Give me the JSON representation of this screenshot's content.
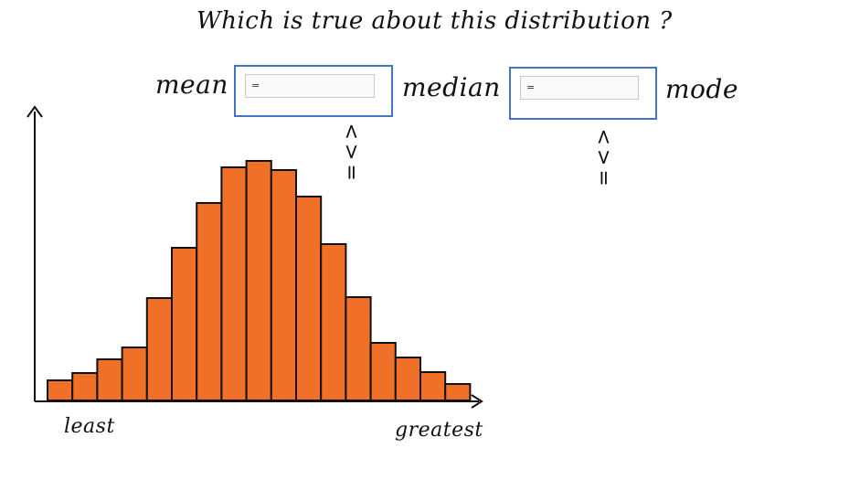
{
  "question": "Which is true about this distribution ?",
  "comparison": {
    "labels": {
      "mean": "mean",
      "median": "median",
      "mode": "mode"
    },
    "dropdowns": [
      {
        "id": "mean-median",
        "selected": "="
      },
      {
        "id": "median-mode",
        "selected": "="
      }
    ],
    "option_hint": "<>="
  },
  "chart_data": {
    "type": "bar",
    "xlabel_left": "least",
    "xlabel_right": "greatest",
    "values": [
      22,
      30,
      45,
      58,
      112,
      167,
      216,
      255,
      262,
      252,
      223,
      171,
      113,
      63,
      47,
      31,
      18
    ],
    "ylim": [
      0,
      300
    ],
    "bar_color": "#f07028",
    "edge_color": "#111111",
    "grid": false,
    "legend": "none"
  }
}
